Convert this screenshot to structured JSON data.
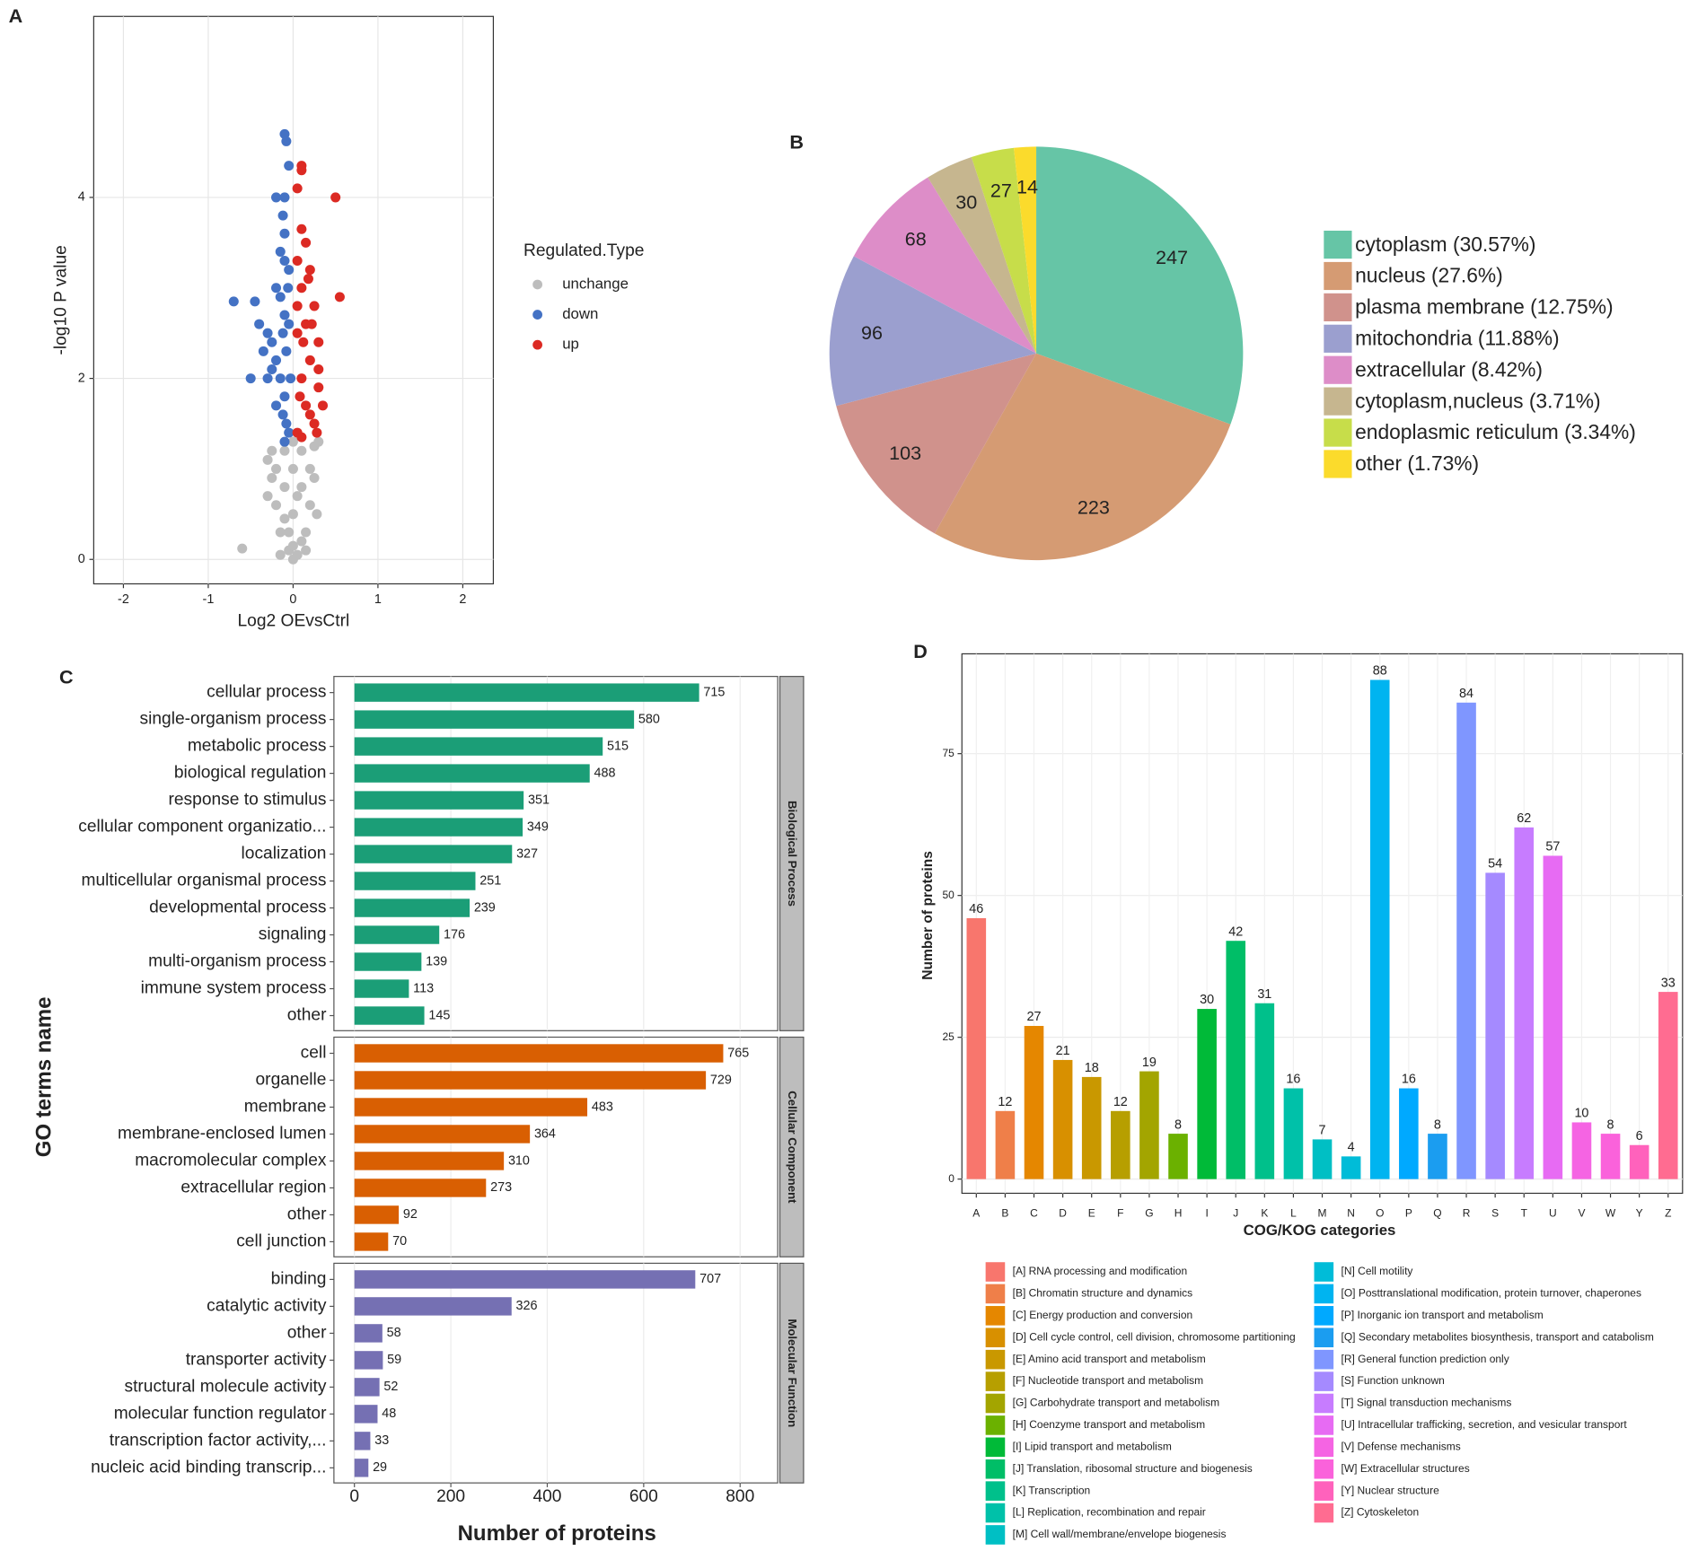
{
  "chart_data": [
    {
      "type": "scatter",
      "panel_label": "A",
      "xlabel": "Log2 OEvsCtrl",
      "ylabel": "-log10 P value",
      "legend_title": "Regulated.Type",
      "xlim": [
        -2.35,
        2.36
      ],
      "ylim": [
        -0.27,
        6.0
      ],
      "xticks": [
        -2,
        -1,
        0,
        1,
        2
      ],
      "yticks": [
        0,
        2,
        4
      ],
      "grid": true,
      "series": [
        {
          "name": "unchange",
          "color": "#bdbdbd",
          "x": [
            -0.6,
            0,
            0.05,
            -0.05,
            -0.15,
            0.15,
            -0.2,
            0.2,
            -0.25,
            0.25,
            -0.25,
            0.25,
            0,
            0,
            -0.1,
            0.1,
            -0.1,
            0.1,
            -0.3,
            0.3,
            0,
            -0.05,
            0.05,
            -0.2,
            0.2,
            -0.1,
            0.1,
            -0.3,
            0.28,
            0,
            -0.15,
            0.15
          ],
          "values": [
            0.12,
            0,
            0.05,
            0.1,
            0.3,
            0.3,
            0.6,
            0.6,
            0.9,
            0.9,
            1.2,
            1.25,
            0.5,
            1.0,
            0.8,
            0.8,
            1.2,
            1.2,
            1.1,
            1.3,
            1.3,
            0.3,
            0.7,
            1.0,
            1.0,
            0.45,
            0.2,
            0.7,
            0.5,
            0.15,
            0.05,
            0.1
          ]
        },
        {
          "name": "down",
          "color": "#4472c4",
          "x": [
            -0.1,
            -0.08,
            -0.05,
            -0.2,
            -0.1,
            -0.12,
            -0.1,
            -0.15,
            -0.1,
            -0.05,
            -0.7,
            -0.45,
            -0.4,
            -0.3,
            -0.25,
            -0.5,
            -0.2,
            -0.15,
            -0.1,
            -0.12,
            -0.08,
            -0.05,
            -0.15,
            -0.1,
            -0.2,
            -0.05,
            -0.08,
            -0.1,
            -0.03,
            -0.06,
            -0.2,
            -0.25,
            -0.12,
            -0.3,
            -0.35
          ],
          "values": [
            4.7,
            4.62,
            4.35,
            4.0,
            4.0,
            3.8,
            3.6,
            3.4,
            3.3,
            3.2,
            2.85,
            2.85,
            2.6,
            2.5,
            2.4,
            2.0,
            2.2,
            2.0,
            1.8,
            1.6,
            1.5,
            1.4,
            2.9,
            2.7,
            3.0,
            2.6,
            2.3,
            1.3,
            2.0,
            3.0,
            1.7,
            2.1,
            2.5,
            2.0,
            2.3
          ]
        },
        {
          "name": "up",
          "color": "#dc2a23",
          "x": [
            0.1,
            0.1,
            0.05,
            0.5,
            0.1,
            0.15,
            0.05,
            0.2,
            0.1,
            0.55,
            0.25,
            0.15,
            0.3,
            0.2,
            0.1,
            0.3,
            0.15,
            0.25,
            0.05,
            0.1,
            0.05,
            0.3,
            0.2,
            0.05,
            0.18,
            0.35,
            0.08,
            0.12,
            0.22,
            0.28
          ],
          "values": [
            4.35,
            4.3,
            4.1,
            4.0,
            3.65,
            3.5,
            3.3,
            3.2,
            3.0,
            2.9,
            2.8,
            2.6,
            2.4,
            2.2,
            2.0,
            1.9,
            1.7,
            1.5,
            1.4,
            1.35,
            2.8,
            2.1,
            1.6,
            2.5,
            3.1,
            1.7,
            1.8,
            2.4,
            2.6,
            1.4
          ]
        }
      ]
    },
    {
      "type": "pie",
      "panel_label": "B",
      "categories": [
        "cytoplasm (30.57%)",
        "nucleus (27.6%)",
        "plasma membrane (12.75%)",
        "mitochondria (11.88%)",
        "extracellular (8.42%)",
        "cytoplasm,nucleus (3.71%)",
        "endoplasmic reticulum (3.34%)",
        "other (1.73%)"
      ],
      "values": [
        247,
        223,
        103,
        96,
        68,
        30,
        27,
        14
      ],
      "colors": [
        "#66c5a6",
        "#d59b73",
        "#d0928c",
        "#9b9fcf",
        "#dd8dc8",
        "#c6b68f",
        "#c7dd4a",
        "#fbdb2c"
      ]
    },
    {
      "type": "bar",
      "orientation": "horizontal",
      "panel_label": "C",
      "xlabel": "Number of proteins",
      "ylabel": "GO terms name",
      "xlim": [
        -42.5,
        878
      ],
      "xticks": [
        0,
        200,
        400,
        600,
        800
      ],
      "grid": true,
      "facets": [
        {
          "name": "Biological Process",
          "color": "#1b9e77",
          "categories": [
            "cellular process",
            "single-organism process",
            "metabolic process",
            "biological regulation",
            "response to stimulus",
            "cellular component organizatio...",
            "localization",
            "multicellular organismal process",
            "developmental process",
            "signaling",
            "multi-organism process",
            "immune system process",
            "other"
          ],
          "values": [
            715,
            580,
            515,
            488,
            351,
            349,
            327,
            251,
            239,
            176,
            139,
            113,
            145
          ]
        },
        {
          "name": "Cellular Component",
          "color": "#d95f02",
          "categories": [
            "cell",
            "organelle",
            "membrane",
            "membrane-enclosed lumen",
            "macromolecular complex",
            "extracellular region",
            "other",
            "cell junction"
          ],
          "values": [
            765,
            729,
            483,
            364,
            310,
            273,
            92,
            70
          ]
        },
        {
          "name": "Molecular Function",
          "color": "#7570b3",
          "categories": [
            "binding",
            "catalytic activity",
            "other",
            "transporter activity",
            "structural molecule activity",
            "molecular function regulator",
            "transcription factor activity,...",
            "nucleic acid binding transcrip..."
          ],
          "values": [
            707,
            326,
            58,
            59,
            52,
            48,
            33,
            29
          ]
        }
      ]
    },
    {
      "type": "bar",
      "orientation": "vertical",
      "panel_label": "D",
      "xlabel": "COG/KOG categories",
      "ylabel": "Number of proteins",
      "ylim": [
        -2.5,
        92.6
      ],
      "yticks": [
        0,
        25,
        50,
        75
      ],
      "grid": true,
      "categories": [
        "A",
        "B",
        "C",
        "D",
        "E",
        "F",
        "G",
        "H",
        "I",
        "J",
        "K",
        "L",
        "M",
        "N",
        "O",
        "P",
        "Q",
        "R",
        "S",
        "T",
        "U",
        "V",
        "W",
        "Y",
        "Z"
      ],
      "values": [
        46,
        12,
        27,
        21,
        18,
        12,
        19,
        8,
        30,
        42,
        31,
        16,
        7,
        4,
        88,
        16,
        8,
        84,
        54,
        62,
        57,
        10,
        8,
        6,
        33
      ],
      "colors": [
        "#f8766d",
        "#ef7f49",
        "#e58700",
        "#d89000",
        "#c99800",
        "#b79f00",
        "#a3a500",
        "#6bb100",
        "#00ba38",
        "#00be67",
        "#00c08b",
        "#00c1a9",
        "#00bfc4",
        "#00bcd8",
        "#00b4f0",
        "#00a9ff",
        "#1b9df0",
        "#7f96ff",
        "#a58aff",
        "#c77cff",
        "#e76bf3",
        "#f564e3",
        "#fa62db",
        "#ff62bc",
        "#ff6c91"
      ],
      "legend_labels": [
        "[A] RNA processing and modification",
        "[B] Chromatin structure and dynamics",
        "[C] Energy production and conversion",
        "[D] Cell cycle control, cell division, chromosome partitioning",
        "[E] Amino acid transport and metabolism",
        "[F] Nucleotide transport and metabolism",
        "[G] Carbohydrate transport and metabolism",
        "[H] Coenzyme transport and metabolism",
        "[I] Lipid transport and metabolism",
        "[J] Translation, ribosomal structure and biogenesis",
        "[K] Transcription",
        "[L] Replication, recombination and repair",
        "[M] Cell wall/membrane/envelope biogenesis",
        "[N] Cell motility",
        "[O] Posttranslational modification, protein turnover, chaperones",
        "[P] Inorganic ion transport and metabolism",
        "[Q] Secondary metabolites biosynthesis, transport and catabolism",
        "[R] General function prediction only",
        "[S] Function unknown",
        "[T] Signal transduction mechanisms",
        "[U] Intracellular trafficking, secretion, and vesicular transport",
        "[V] Defense mechanisms",
        "[W] Extracellular structures",
        "[Y] Nuclear structure",
        "[Z] Cytoskeleton"
      ]
    }
  ]
}
